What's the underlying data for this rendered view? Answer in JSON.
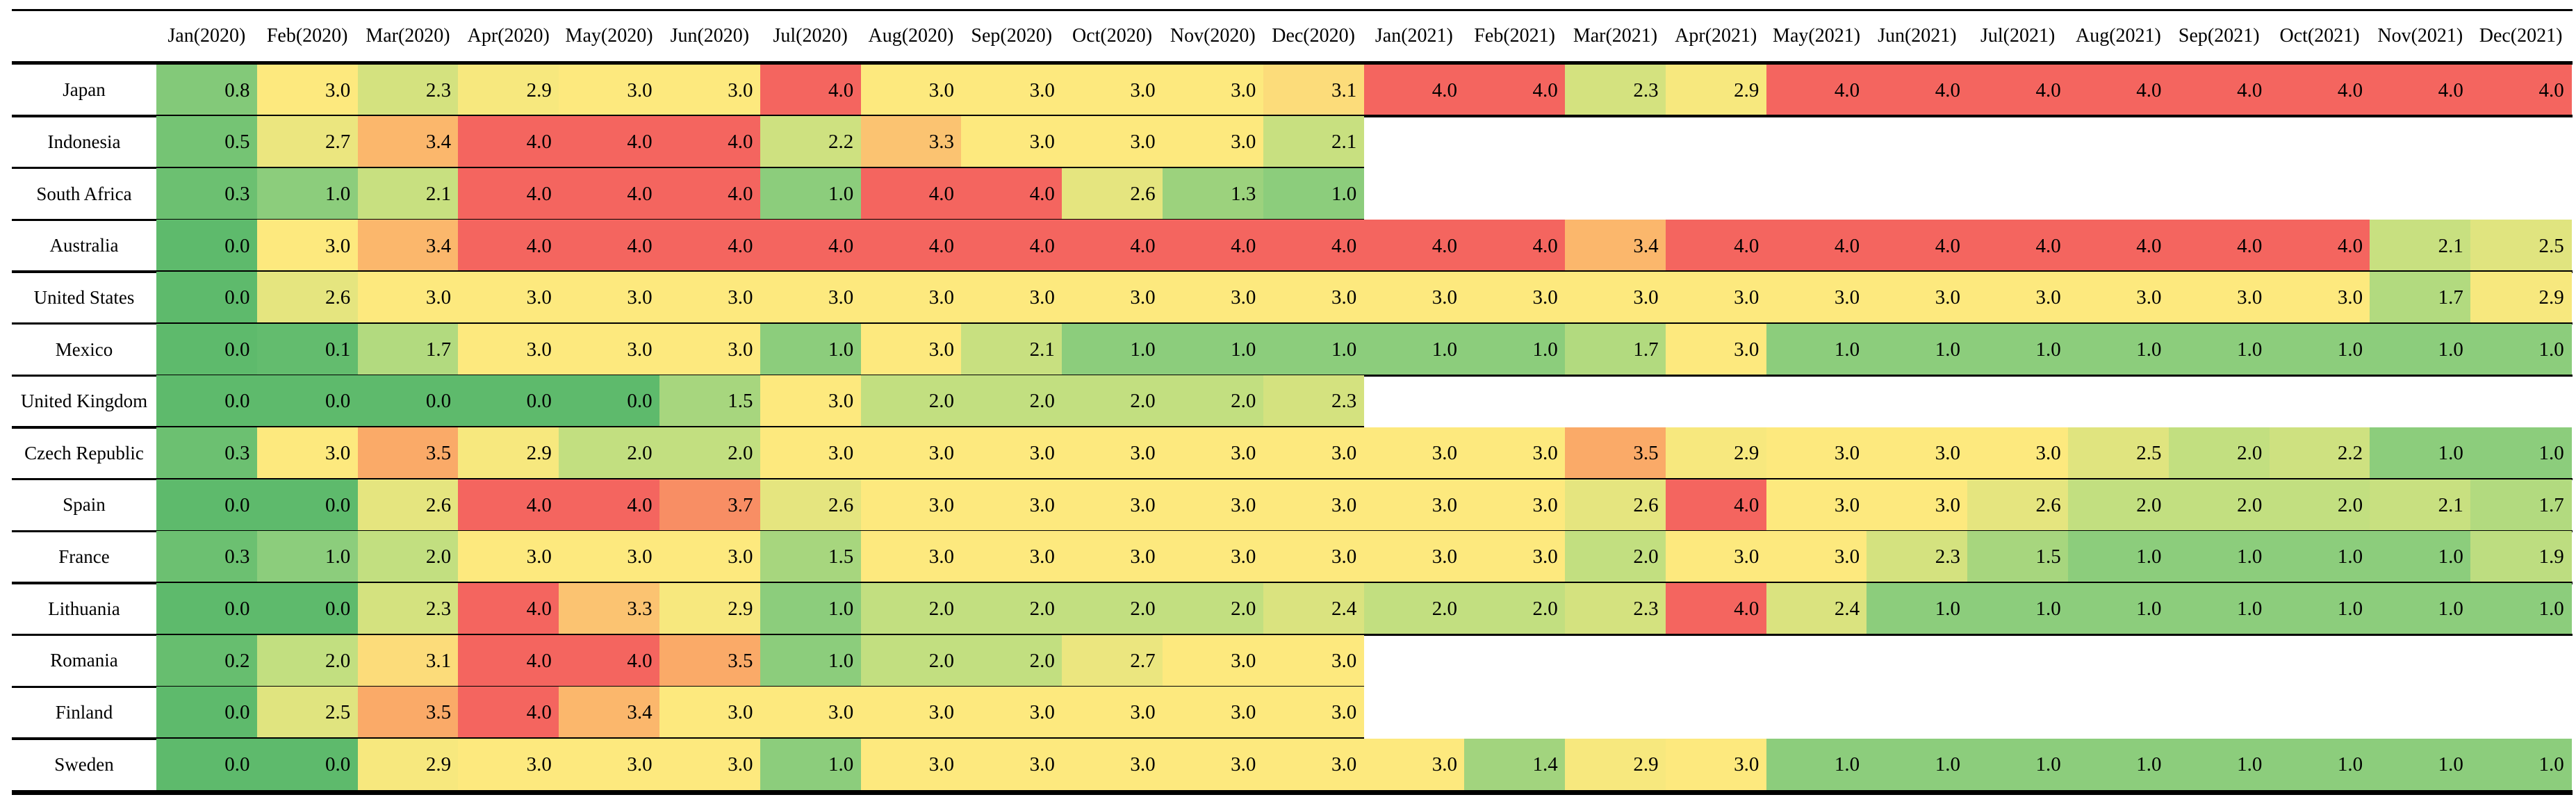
{
  "chart_data": {
    "type": "heatmap",
    "title": "",
    "x_categories": [
      "Jan(2020)",
      "Feb(2020)",
      "Mar(2020)",
      "Apr(2020)",
      "May(2020)",
      "Jun(2020)",
      "Jul(2020)",
      "Aug(2020)",
      "Sep(2020)",
      "Oct(2020)",
      "Nov(2020)",
      "Dec(2020)",
      "Jan(2021)",
      "Feb(2021)",
      "Mar(2021)",
      "Apr(2021)",
      "May(2021)",
      "Jun(2021)",
      "Jul(2021)",
      "Aug(2021)",
      "Sep(2021)",
      "Oct(2021)",
      "Nov(2021)",
      "Dec(2021)"
    ],
    "y_categories": [
      "Japan",
      "Indonesia",
      "South Africa",
      "Australia",
      "United States",
      "Mexico",
      "United Kingdom",
      "Czech Republic",
      "Spain",
      "France",
      "Lithuania",
      "Romania",
      "Finland",
      "Sweden"
    ],
    "rows": [
      {
        "label": "Japan",
        "values": [
          0.8,
          3.0,
          2.3,
          2.9,
          3.0,
          3.0,
          4.0,
          3.0,
          3.0,
          3.0,
          3.0,
          3.1,
          4.0,
          4.0,
          2.3,
          2.9,
          4.0,
          4.0,
          4.0,
          4.0,
          4.0,
          4.0,
          4.0,
          4.0
        ]
      },
      {
        "label": "Indonesia",
        "values": [
          0.5,
          2.7,
          3.4,
          4.0,
          4.0,
          4.0,
          2.2,
          3.3,
          3.0,
          3.0,
          3.0,
          2.1,
          null,
          null,
          null,
          null,
          null,
          null,
          null,
          null,
          null,
          null,
          null,
          null
        ]
      },
      {
        "label": "South Africa",
        "values": [
          0.3,
          1.0,
          2.1,
          4.0,
          4.0,
          4.0,
          1.0,
          4.0,
          4.0,
          2.6,
          1.3,
          1.0,
          null,
          null,
          null,
          null,
          null,
          null,
          null,
          null,
          null,
          null,
          null,
          null
        ]
      },
      {
        "label": "Australia",
        "values": [
          0.0,
          3.0,
          3.4,
          4.0,
          4.0,
          4.0,
          4.0,
          4.0,
          4.0,
          4.0,
          4.0,
          4.0,
          4.0,
          4.0,
          3.4,
          4.0,
          4.0,
          4.0,
          4.0,
          4.0,
          4.0,
          4.0,
          2.1,
          2.5
        ]
      },
      {
        "label": "United States",
        "values": [
          0.0,
          2.6,
          3.0,
          3.0,
          3.0,
          3.0,
          3.0,
          3.0,
          3.0,
          3.0,
          3.0,
          3.0,
          3.0,
          3.0,
          3.0,
          3.0,
          3.0,
          3.0,
          3.0,
          3.0,
          3.0,
          3.0,
          1.7,
          2.9
        ]
      },
      {
        "label": "Mexico",
        "values": [
          0.0,
          0.1,
          1.7,
          3.0,
          3.0,
          3.0,
          1.0,
          3.0,
          2.1,
          1.0,
          1.0,
          1.0,
          1.0,
          1.0,
          1.7,
          3.0,
          1.0,
          1.0,
          1.0,
          1.0,
          1.0,
          1.0,
          1.0,
          1.0
        ]
      },
      {
        "label": "United Kingdom",
        "values": [
          0.0,
          0.0,
          0.0,
          0.0,
          0.0,
          1.5,
          3.0,
          2.0,
          2.0,
          2.0,
          2.0,
          2.3,
          null,
          null,
          null,
          null,
          null,
          null,
          null,
          null,
          null,
          null,
          null,
          null
        ]
      },
      {
        "label": "Czech Republic",
        "values": [
          0.3,
          3.0,
          3.5,
          2.9,
          2.0,
          2.0,
          3.0,
          3.0,
          3.0,
          3.0,
          3.0,
          3.0,
          3.0,
          3.0,
          3.5,
          2.9,
          3.0,
          3.0,
          3.0,
          2.5,
          2.0,
          2.2,
          1.0,
          1.0
        ]
      },
      {
        "label": "Spain",
        "values": [
          0.0,
          0.0,
          2.6,
          4.0,
          4.0,
          3.7,
          2.6,
          3.0,
          3.0,
          3.0,
          3.0,
          3.0,
          3.0,
          3.0,
          2.6,
          4.0,
          3.0,
          3.0,
          2.6,
          2.0,
          2.0,
          2.0,
          2.1,
          1.7
        ]
      },
      {
        "label": "France",
        "values": [
          0.3,
          1.0,
          2.0,
          3.0,
          3.0,
          3.0,
          1.5,
          3.0,
          3.0,
          3.0,
          3.0,
          3.0,
          3.0,
          3.0,
          2.0,
          3.0,
          3.0,
          2.3,
          1.5,
          1.0,
          1.0,
          1.0,
          1.0,
          1.9
        ]
      },
      {
        "label": "Lithuania",
        "values": [
          0.0,
          0.0,
          2.3,
          4.0,
          3.3,
          2.9,
          1.0,
          2.0,
          2.0,
          2.0,
          2.0,
          2.4,
          2.0,
          2.0,
          2.3,
          4.0,
          2.4,
          1.0,
          1.0,
          1.0,
          1.0,
          1.0,
          1.0,
          1.0
        ]
      },
      {
        "label": "Romania",
        "values": [
          0.2,
          2.0,
          3.1,
          4.0,
          4.0,
          3.5,
          1.0,
          2.0,
          2.0,
          2.7,
          3.0,
          3.0,
          null,
          null,
          null,
          null,
          null,
          null,
          null,
          null,
          null,
          null,
          null,
          null
        ]
      },
      {
        "label": "Finland",
        "values": [
          0.0,
          2.5,
          3.5,
          4.0,
          3.4,
          3.0,
          3.0,
          3.0,
          3.0,
          3.0,
          3.0,
          3.0,
          null,
          null,
          null,
          null,
          null,
          null,
          null,
          null,
          null,
          null,
          null,
          null
        ]
      },
      {
        "label": "Sweden",
        "values": [
          0.0,
          0.0,
          2.9,
          3.0,
          3.0,
          3.0,
          1.0,
          3.0,
          3.0,
          3.0,
          3.0,
          3.0,
          3.0,
          1.4,
          2.9,
          3.0,
          1.0,
          1.0,
          1.0,
          1.0,
          1.0,
          1.0,
          1.0,
          1.0
        ]
      }
    ],
    "value_range": [
      0,
      4
    ],
    "value_format": "1-decimal",
    "color_scale": {
      "stops": [
        {
          "value": 0.0,
          "color": "#5eba6c"
        },
        {
          "value": 1.0,
          "color": "#8ccd7c"
        },
        {
          "value": 2.0,
          "color": "#c2df80"
        },
        {
          "value": 3.0,
          "color": "#fde97e"
        },
        {
          "value": 3.5,
          "color": "#faaa68"
        },
        {
          "value": 4.0,
          "color": "#f4655f"
        }
      ],
      "missing_color": "#ffffff"
    },
    "grid_line_color": "#000000",
    "background_color": "#ffffff",
    "legend": "none",
    "layout": {
      "grid": "horizontal-rules-only",
      "note_short_rows_end_at": "Dec(2020)"
    }
  }
}
